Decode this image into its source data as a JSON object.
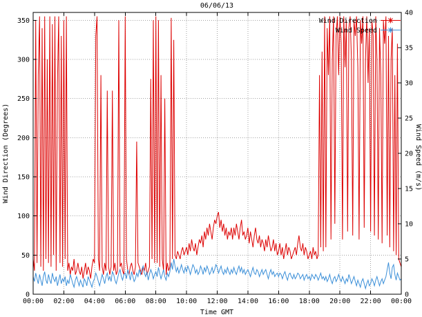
{
  "colors": {
    "background": "#ffffff",
    "grid": "#a0a0a0",
    "axis": "#000000",
    "text": "#000000"
  },
  "chart_data": {
    "type": "line",
    "title": "06/06/13",
    "xlabel": "Time GMT",
    "ylabel_left": "Wind Direction (Degrees)",
    "ylabel_right": "Wind Speed (m/s)",
    "grid": true,
    "legend_position": "top-right",
    "x_axis": {
      "start_minutes": 0,
      "end_minutes": 1440,
      "step_minutes": 5,
      "tick_interval_minutes": 120,
      "tick_labels": [
        "00:00",
        "02:00",
        "04:00",
        "06:00",
        "08:00",
        "10:00",
        "12:00",
        "14:00",
        "16:00",
        "18:00",
        "20:00",
        "22:00",
        "00:00"
      ]
    },
    "y_left": {
      "min": 0,
      "max": 360,
      "tick_step": 50
    },
    "y_right": {
      "min": 0,
      "max": 40,
      "tick_step": 5
    },
    "series": [
      {
        "name": "Wind Direction",
        "axis": "left",
        "color": "#dd0000",
        "values": [
          45,
          30,
          350,
          40,
          280,
          355,
          35,
          340,
          30,
          355,
          45,
          300,
          40,
          355,
          35,
          345,
          50,
          355,
          30,
          270,
          355,
          40,
          330,
          35,
          350,
          45,
          355,
          30,
          40,
          25,
          35,
          30,
          45,
          25,
          30,
          40,
          30,
          25,
          35,
          20,
          30,
          40,
          25,
          35,
          30,
          20,
          35,
          45,
          40,
          330,
          355,
          45,
          30,
          280,
          35,
          25,
          40,
          30,
          260,
          35,
          25,
          35,
          260,
          30,
          40,
          25,
          30,
          350,
          35,
          40,
          30,
          25,
          355,
          45,
          30,
          25,
          35,
          40,
          30,
          25,
          35,
          195,
          40,
          35,
          30,
          25,
          35,
          30,
          40,
          25,
          30,
          35,
          275,
          45,
          350,
          40,
          355,
          40,
          350,
          35,
          280,
          45,
          30,
          250,
          25,
          40,
          30,
          35,
          353,
          45,
          325,
          50,
          45,
          55,
          50,
          45,
          55,
          60,
          50,
          55,
          60,
          50,
          65,
          55,
          70,
          60,
          55,
          65,
          50,
          60,
          70,
          65,
          75,
          60,
          80,
          70,
          85,
          75,
          90,
          80,
          70,
          85,
          95,
          90,
          100,
          105,
          85,
          95,
          80,
          90,
          75,
          85,
          70,
          80,
          75,
          85,
          70,
          85,
          75,
          90,
          80,
          70,
          85,
          95,
          75,
          80,
          70,
          75,
          85,
          65,
          80,
          70,
          60,
          75,
          85,
          70,
          65,
          75,
          60,
          70,
          65,
          55,
          70,
          60,
          75,
          65,
          55,
          60,
          70,
          55,
          65,
          50,
          55,
          65,
          50,
          60,
          45,
          55,
          65,
          50,
          60,
          55,
          45,
          50,
          55,
          60,
          50,
          65,
          75,
          60,
          55,
          65,
          50,
          60,
          55,
          45,
          50,
          55,
          45,
          60,
          50,
          55,
          45,
          50,
          280,
          60,
          310,
          55,
          355,
          60,
          340,
          280,
          355,
          70,
          300,
          355,
          90,
          330,
          355,
          280,
          355,
          320,
          70,
          355,
          290,
          350,
          80,
          340,
          355,
          300,
          75,
          350,
          330,
          355,
          290,
          70,
          350,
          320,
          355,
          85,
          300,
          355,
          270,
          340,
          80,
          350,
          330,
          75,
          355,
          300,
          70,
          340,
          280,
          65,
          350,
          320,
          355,
          75,
          330,
          60,
          300,
          340,
          55,
          280,
          50,
          320,
          45,
          40,
          35
        ]
      },
      {
        "name": "Wind Speed",
        "axis": "right",
        "color": "#3b8fd8",
        "values": [
          2.5,
          1.8,
          3.0,
          2.2,
          1.5,
          2.8,
          2.0,
          1.2,
          2.5,
          3.2,
          2.0,
          1.5,
          2.8,
          2.0,
          1.5,
          3.0,
          2.2,
          1.8,
          2.5,
          1.2,
          2.0,
          2.8,
          1.5,
          2.2,
          1.8,
          2.5,
          1.2,
          2.0,
          1.5,
          2.8,
          2.2,
          1.5,
          1.0,
          2.0,
          2.5,
          1.8,
          1.2,
          2.0,
          1.5,
          1.0,
          2.2,
          1.8,
          1.2,
          2.5,
          2.0,
          1.5,
          1.0,
          1.8,
          2.2,
          3.0,
          2.5,
          1.8,
          1.2,
          2.0,
          2.8,
          2.2,
          1.5,
          2.5,
          3.0,
          2.0,
          2.5,
          1.8,
          3.2,
          2.8,
          2.0,
          1.5,
          2.2,
          3.0,
          3.5,
          2.5,
          2.0,
          2.8,
          3.0,
          2.2,
          3.5,
          2.8,
          2.0,
          3.2,
          2.5,
          1.8,
          2.2,
          3.0,
          2.5,
          3.5,
          2.8,
          3.5,
          4.0,
          3.0,
          2.5,
          3.2,
          2.0,
          2.8,
          3.5,
          3.0,
          2.2,
          2.8,
          3.2,
          2.5,
          3.8,
          3.0,
          2.2,
          2.8,
          3.5,
          2.5,
          2.0,
          3.0,
          2.5,
          3.2,
          4.5,
          3.5,
          5.0,
          4.0,
          3.2,
          3.8,
          3.0,
          3.5,
          4.2,
          3.5,
          3.0,
          3.8,
          3.2,
          4.0,
          3.5,
          2.8,
          3.5,
          4.2,
          3.8,
          3.0,
          3.5,
          2.8,
          3.2,
          4.0,
          3.5,
          2.8,
          3.8,
          3.2,
          4.0,
          3.5,
          2.8,
          3.2,
          3.8,
          3.0,
          3.5,
          4.2,
          3.8,
          3.0,
          3.5,
          4.0,
          3.2,
          2.8,
          3.5,
          3.0,
          3.8,
          3.2,
          2.8,
          3.5,
          3.0,
          3.8,
          3.2,
          2.8,
          3.5,
          4.0,
          3.2,
          3.8,
          3.0,
          3.5,
          2.8,
          3.2,
          3.5,
          3.0,
          2.5,
          3.2,
          3.8,
          3.0,
          2.8,
          3.5,
          3.2,
          2.5,
          3.0,
          3.5,
          2.8,
          3.2,
          3.5,
          2.8,
          2.2,
          3.0,
          3.5,
          2.8,
          3.2,
          2.5,
          2.8,
          3.0,
          2.5,
          3.0,
          2.8,
          2.2,
          2.8,
          3.2,
          2.5,
          2.0,
          2.8,
          3.0,
          2.5,
          2.2,
          2.8,
          2.2,
          2.5,
          3.0,
          2.8,
          2.2,
          2.5,
          2.8,
          2.0,
          2.5,
          2.8,
          2.2,
          2.5,
          2.0,
          2.8,
          2.5,
          2.2,
          2.8,
          2.5,
          2.0,
          2.5,
          3.0,
          2.2,
          2.5,
          2.0,
          2.5,
          1.8,
          2.2,
          2.8,
          2.0,
          1.5,
          2.2,
          2.5,
          1.8,
          2.2,
          2.8,
          2.2,
          1.8,
          2.5,
          2.0,
          1.5,
          2.2,
          1.8,
          2.8,
          2.2,
          1.5,
          2.0,
          2.5,
          1.8,
          1.2,
          2.0,
          1.5,
          1.0,
          1.8,
          2.2,
          1.5,
          0.8,
          1.5,
          2.0,
          1.2,
          1.5,
          2.2,
          1.8,
          1.2,
          2.0,
          2.5,
          1.8,
          1.2,
          1.8,
          2.2,
          1.5,
          2.0,
          2.5,
          3.5,
          4.5,
          3.0,
          2.2,
          3.8,
          4.2,
          2.8,
          2.0,
          3.0,
          2.5,
          2.0,
          2.2
        ]
      }
    ]
  }
}
